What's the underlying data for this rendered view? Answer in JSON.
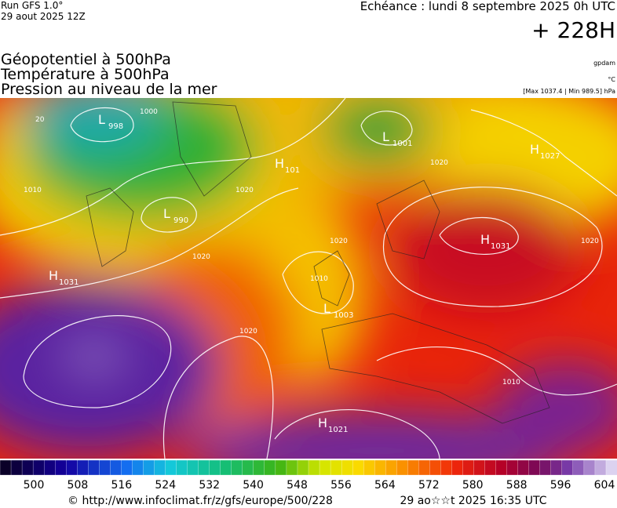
{
  "header": {
    "run": "Run GFS 1.0°",
    "run_date": "29 aout 2025 12Z",
    "echeance": "Echéance : lundi 8 septembre 2025 0h UTC",
    "lead": "+ 228H",
    "fields": [
      "Géopotentiel à 500hPa",
      "Température à 500hPa",
      "Pression au niveau de la mer"
    ],
    "units": [
      "gpdam",
      "°C",
      "[Max 1037.4 | Min 989.5] hPa"
    ]
  },
  "map_labels": [
    {
      "letter": "L",
      "value": "998"
    },
    {
      "letter": "L",
      "value": "990"
    },
    {
      "letter": "H",
      "value": "1031"
    },
    {
      "letter": "H",
      "value": "101"
    },
    {
      "letter": "L",
      "value": "1001"
    },
    {
      "letter": "H",
      "value": "1027"
    },
    {
      "letter": "H",
      "value": "1031"
    },
    {
      "letter": "L",
      "value": "1003"
    },
    {
      "letter": "H",
      "value": "1021"
    }
  ],
  "contour_labels": [
    "1000",
    "1010",
    "1020",
    "1020",
    "1020",
    "1010",
    "1020",
    "1020",
    "1010",
    "1020",
    "20"
  ],
  "colorbar": {
    "labels": [
      500,
      508,
      516,
      524,
      532,
      540,
      548,
      556,
      564,
      572,
      580,
      588,
      596,
      604
    ]
  },
  "footer": {
    "source": "© http://www.infoclimat.fr/z/gfs/europe/500/228",
    "generated": "29 ao☆☆t 2025 16:35 UTC"
  }
}
